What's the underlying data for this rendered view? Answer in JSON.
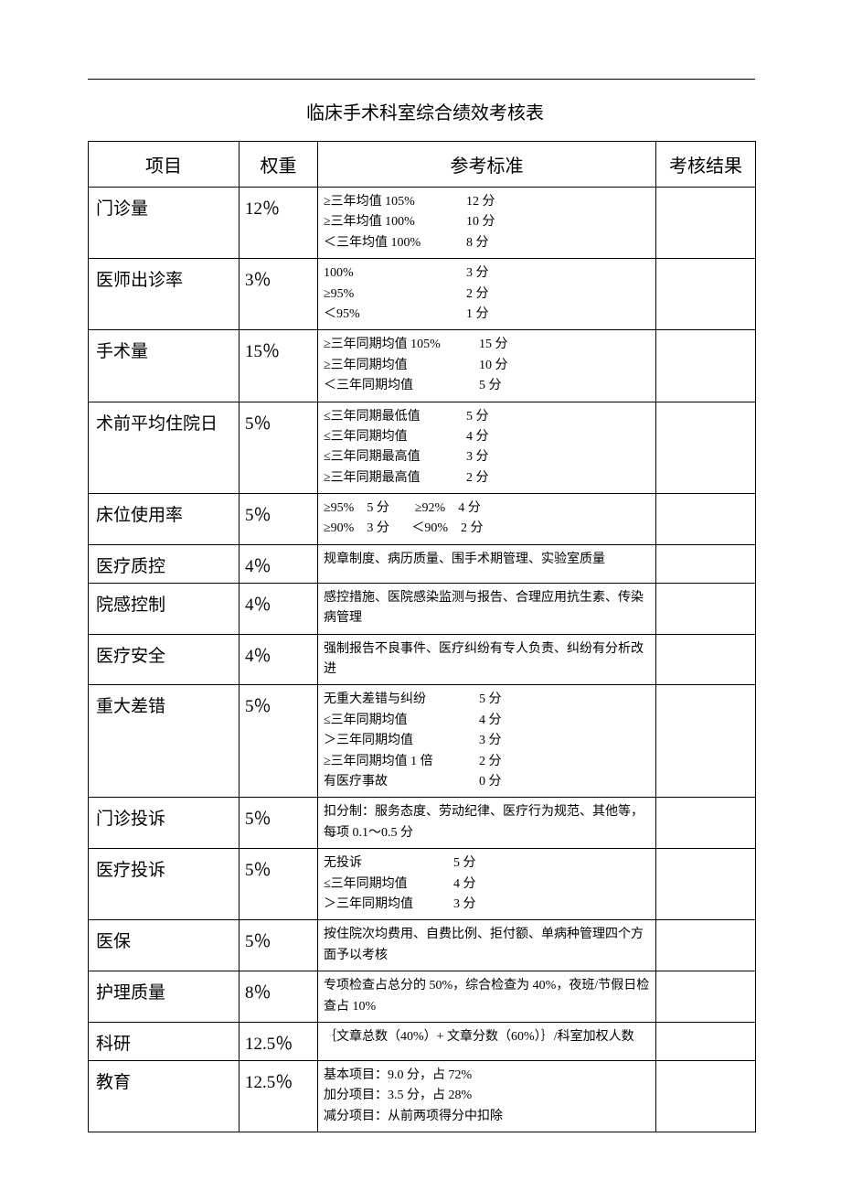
{
  "title": "临床手术科室综合绩效考核表",
  "headers": {
    "item": "项目",
    "weight": "权重",
    "standard": "参考标准",
    "result": "考核结果"
  },
  "rows": [
    {
      "item": "门诊量",
      "weight": "12％",
      "standards": [
        {
          "left": "≥三年均值 105%",
          "right": "12 分",
          "leftWidth": 156
        },
        {
          "left": "≥三年均值 100%",
          "right": "10 分",
          "leftWidth": 156
        },
        {
          "left": "＜三年均值 100%",
          "right": "8 分",
          "leftWidth": 156
        }
      ]
    },
    {
      "item": "医师出诊率",
      "weight": "3％",
      "standards": [
        {
          "left": "100%",
          "right": "3 分",
          "leftWidth": 156
        },
        {
          "left": "≥95%",
          "right": "2 分",
          "leftWidth": 156
        },
        {
          "left": "＜95%",
          "right": "1 分",
          "leftWidth": 156
        }
      ]
    },
    {
      "item": "手术量",
      "weight": "15％",
      "standards": [
        {
          "left": "≥三年同期均值 105%",
          "right": "15 分",
          "leftWidth": 170
        },
        {
          "left": "≥三年同期均值",
          "right": "10 分",
          "leftWidth": 170
        },
        {
          "left": "＜三年同期均值",
          "right": "5 分",
          "leftWidth": 170
        }
      ]
    },
    {
      "item": "术前平均住院日",
      "weight": "5％",
      "standards": [
        {
          "left": "≤三年同期最低值",
          "right": "5 分",
          "leftWidth": 156
        },
        {
          "left": "≤三年同期均值",
          "right": "4 分",
          "leftWidth": 156
        },
        {
          "left": "≤三年同期最高值",
          "right": "3 分",
          "leftWidth": 156
        },
        {
          "left": "≥三年同期最高值",
          "right": "2 分",
          "leftWidth": 156
        }
      ]
    },
    {
      "item": "床位使用率",
      "weight": "5％",
      "text": "≥95%    5 分        ≥92%    4 分\n≥90%    3 分       ＜90%    2 分"
    },
    {
      "item": "医疗质控",
      "weight": "4％",
      "text": "规章制度、病历质量、围手术期管理、实验室质量"
    },
    {
      "item": "院感控制",
      "weight": "4％",
      "text": "感控措施、医院感染监测与报告、合理应用抗生素、传染病管理"
    },
    {
      "item": "医疗安全",
      "weight": "4％",
      "text": "强制报告不良事件、医疗纠纷有专人负责、纠纷有分析改进"
    },
    {
      "item": "重大差错",
      "weight": "5％",
      "standards": [
        {
          "left": "无重大差错与纠纷",
          "right": "5 分",
          "leftWidth": 170
        },
        {
          "left": "≤三年同期均值",
          "right": "4 分",
          "leftWidth": 170
        },
        {
          "left": "＞三年同期均值",
          "right": "3 分",
          "leftWidth": 170
        },
        {
          "left": "≥三年同期均值 1 倍",
          "right": "2 分",
          "leftWidth": 170
        },
        {
          "left": "有医疗事故",
          "right": "0 分",
          "leftWidth": 170
        }
      ]
    },
    {
      "item": "门诊投诉",
      "weight": "5％",
      "text": "扣分制：服务态度、劳动纪律、医疗行为规范、其他等，每项 0.1～0.5 分"
    },
    {
      "item": "医疗投诉",
      "weight": "5％",
      "standards": [
        {
          "left": "无投诉",
          "right": "5 分",
          "leftWidth": 142
        },
        {
          "left": "≤三年同期均值",
          "right": "4 分",
          "leftWidth": 142
        },
        {
          "left": "＞三年同期均值",
          "right": "3 分",
          "leftWidth": 142
        }
      ]
    },
    {
      "item": "医保",
      "weight": "5％",
      "text": "按住院次均费用、自费比例、拒付额、单病种管理四个方面予以考核"
    },
    {
      "item": "护理质量",
      "weight": "8％",
      "text": "专项检查占总分的 50%，综合检查为 40%，夜班/节假日检查占 10%"
    },
    {
      "item": "科研",
      "weight": "12.5％",
      "text": "｛文章总数（40%）+ 文章分数（60%）｝/科室加权人数"
    },
    {
      "item": "教育",
      "weight": "12.5％",
      "text": "基本项目：9.0 分，占 72%\n加分项目：3.5 分，占 28%\n减分项目：从前两项得分中扣除"
    }
  ]
}
